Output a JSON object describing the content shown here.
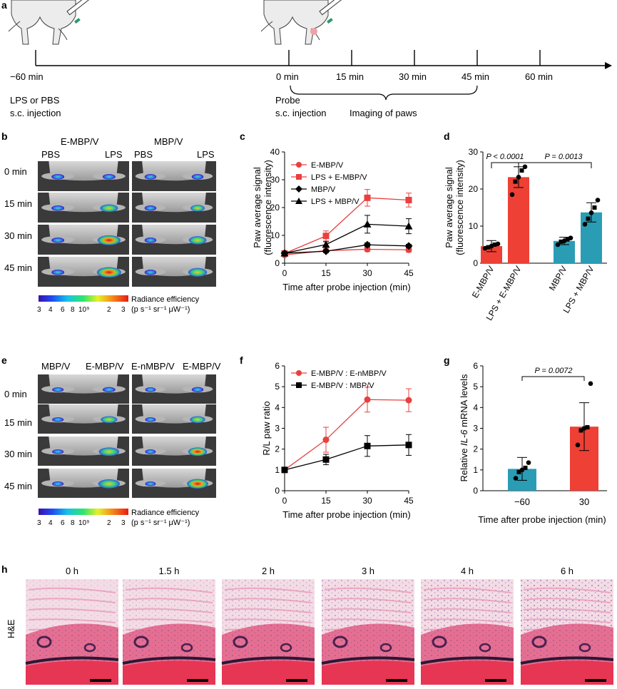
{
  "panel_letters": [
    "a",
    "b",
    "c",
    "d",
    "e",
    "f",
    "g",
    "h"
  ],
  "timeline": {
    "left_label": "−60 min",
    "ticks": [
      "0 min",
      "15 min",
      "30 min",
      "45 min",
      "60 min"
    ],
    "lps_note": [
      "LPS or PBS",
      "s.c. injection"
    ],
    "probe_note": [
      "Probe",
      "s.c. injection"
    ],
    "imaging_note": "Imaging of paws"
  },
  "panel_b": {
    "col_groups": [
      "E-MBP/V",
      "MBP/V"
    ],
    "sub_labels": [
      "PBS",
      "LPS",
      "PBS",
      "LPS"
    ],
    "rows": [
      "0 min",
      "15 min",
      "30 min",
      "45 min"
    ],
    "colorbar_title": "Radiance efficiency",
    "colorbar_unit": "(p s⁻¹ sr⁻¹ μW⁻¹)",
    "colorbar_ticks": [
      "3",
      "4",
      "6",
      "8",
      "10⁹",
      "2",
      "3"
    ]
  },
  "panel_e": {
    "col_labels": [
      "MBP/V",
      "E-MBP/V",
      "E-nMBP/V",
      "E-MBP/V"
    ],
    "rows": [
      "0 min",
      "15 min",
      "30 min",
      "45 min"
    ],
    "colorbar_title": "Radiance efficiency",
    "colorbar_unit": "(p s⁻¹ sr⁻¹ μW⁻¹)",
    "colorbar_ticks": [
      "3",
      "4",
      "6",
      "8",
      "10⁹",
      "2",
      "3"
    ]
  },
  "panel_h": {
    "side_label": "H&E",
    "times": [
      "0 h",
      "1.5 h",
      "2 h",
      "3 h",
      "4 h",
      "6 h"
    ]
  },
  "colors": {
    "red": "#e8403f",
    "black": "#000000",
    "teal": "#2a9db5",
    "bar_red": "#ee4035"
  },
  "chart_data": [
    {
      "id": "c",
      "type": "line",
      "xlabel": "Time after probe injection (min)",
      "ylabel": [
        "Paw average signal",
        "(fluorescence intensity)"
      ],
      "x": [
        0,
        15,
        30,
        45
      ],
      "xlim": [
        0,
        45
      ],
      "ylim": [
        0,
        40
      ],
      "xticks": [
        "0",
        "15",
        "30",
        "45"
      ],
      "yticks": [
        "0",
        "10",
        "20",
        "30",
        "40"
      ],
      "legend_position": "top-left",
      "series": [
        {
          "name": "E-MBP/V",
          "color": "#e8403f",
          "marker": "circle",
          "values": [
            3.0,
            4.5,
            5.0,
            4.8
          ],
          "err": [
            0.5,
            0.6,
            0.8,
            0.8
          ]
        },
        {
          "name": "LPS + E-MBP/V",
          "color": "#e8403f",
          "marker": "square",
          "values": [
            3.5,
            9.8,
            23.5,
            22.7
          ],
          "err": [
            0.6,
            1.8,
            3.0,
            2.5
          ]
        },
        {
          "name": "MBP/V",
          "color": "#000000",
          "marker": "diamond",
          "values": [
            3.6,
            4.3,
            6.6,
            6.2
          ],
          "err": [
            0.4,
            0.5,
            0.7,
            0.6
          ]
        },
        {
          "name": "LPS + MBP/V",
          "color": "#000000",
          "marker": "triangle",
          "values": [
            3.6,
            6.7,
            14.0,
            13.3
          ],
          "err": [
            0.5,
            1.0,
            3.2,
            2.7
          ]
        }
      ]
    },
    {
      "id": "d",
      "type": "bar",
      "ylabel": [
        "Paw average signal",
        "(fluorescence intensity)"
      ],
      "ylim": [
        0,
        30
      ],
      "yticks": [
        "0",
        "10",
        "20",
        "30"
      ],
      "categories": [
        "E-MBP/V",
        "LPS + E-MBP/V",
        "MBP/V",
        "LPS + MBP/V"
      ],
      "values": [
        4.6,
        23.2,
        6.0,
        13.7
      ],
      "err": [
        1.5,
        2.8,
        1.0,
        2.6
      ],
      "points": [
        [
          4.0,
          4.3,
          4.6,
          5.0,
          5.2
        ],
        [
          18.5,
          22.0,
          23.2,
          25.0,
          26.0
        ],
        [
          5.0,
          5.8,
          6.0,
          6.4,
          6.8
        ],
        [
          10.5,
          12.0,
          13.6,
          15.0,
          17.0
        ]
      ],
      "bar_colors": [
        "#ee4035",
        "#ee4035",
        "#2a9db5",
        "#2a9db5"
      ],
      "annotations": [
        "P < 0.0001",
        "P = 0.0013"
      ]
    },
    {
      "id": "f",
      "type": "line",
      "xlabel": "Time after probe injection (min)",
      "ylabel": "R/L paw ratio",
      "x": [
        0,
        15,
        30,
        45
      ],
      "xlim": [
        0,
        45
      ],
      "ylim": [
        0,
        6
      ],
      "xticks": [
        "0",
        "15",
        "30",
        "45"
      ],
      "yticks": [
        "0",
        "1",
        "2",
        "3",
        "4",
        "5",
        "6"
      ],
      "legend_position": "top-left",
      "series": [
        {
          "name": "E-MBP/V : E-nMBP/V",
          "color": "#e8403f",
          "marker": "circle",
          "values": [
            1.0,
            2.45,
            4.38,
            4.35
          ],
          "err": [
            0.05,
            0.6,
            0.6,
            0.55
          ]
        },
        {
          "name": "E-MBP/V : MBP/V",
          "color": "#000000",
          "marker": "square",
          "values": [
            1.0,
            1.5,
            2.15,
            2.2
          ],
          "err": [
            0.05,
            0.25,
            0.5,
            0.5
          ]
        }
      ]
    },
    {
      "id": "g",
      "type": "bar",
      "xlabel": "Time after probe injection (min)",
      "ylabel_parts": [
        "Relative ",
        "IL-6",
        " mRNA levels"
      ],
      "ylim": [
        0,
        6
      ],
      "yticks": [
        "0",
        "1",
        "2",
        "3",
        "4",
        "5",
        "6"
      ],
      "categories": [
        "−60",
        "30"
      ],
      "values": [
        1.05,
        3.08
      ],
      "err": [
        0.55,
        1.15
      ],
      "points": [
        [
          0.6,
          0.9,
          1.0,
          1.1,
          1.35
        ],
        [
          2.2,
          2.9,
          3.0,
          3.05,
          5.15
        ]
      ],
      "bar_colors": [
        "#2a9db5",
        "#ee4035"
      ],
      "annotations": [
        "P = 0.0072"
      ]
    }
  ]
}
